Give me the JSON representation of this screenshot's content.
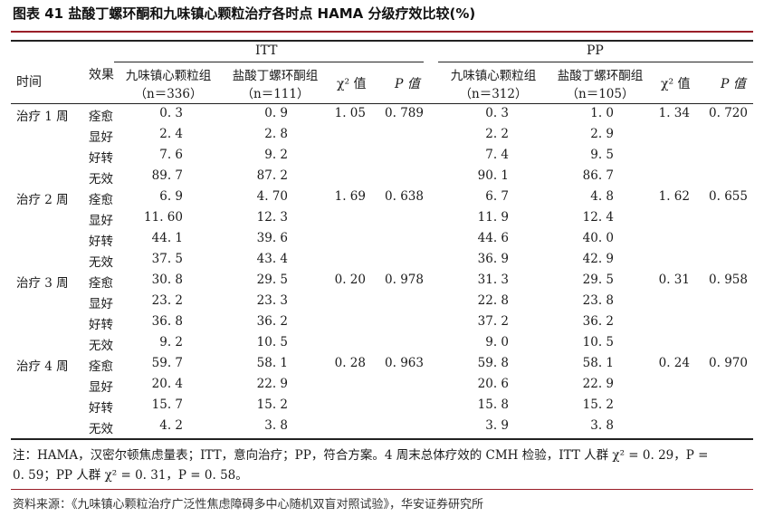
{
  "figure": {
    "title": "图表 41 盐酸丁螺环酮和九味镇心颗粒治疗各时点 HAMA 分级疗效比较(%)"
  },
  "header": {
    "time": "时间",
    "effect": "效果",
    "itt": "ITT",
    "pp": "PP",
    "itt_group1": "九味镇心颗粒组",
    "itt_group1_n": "（n＝336）",
    "itt_group2": "盐酸丁螺环酮组",
    "itt_group2_n": "（n＝111）",
    "pp_group1": "九味镇心颗粒组",
    "pp_group1_n": "（n＝312）",
    "pp_group2": "盐酸丁螺环酮组",
    "pp_group2_n": "（n＝105）",
    "chi": "χ² 值",
    "p": "P 值"
  },
  "rows": [
    {
      "time": "治疗 1 周",
      "effect": "痊愈",
      "itt1": "0. 3",
      "itt2": "0. 9",
      "itt_chi": "1. 05",
      "itt_p": "0. 789",
      "pp1": "0. 3",
      "pp2": "1. 0",
      "pp_chi": "1. 34",
      "pp_p": "0. 720"
    },
    {
      "time": "",
      "effect": "显好",
      "itt1": "2. 4",
      "itt2": "2. 8",
      "itt_chi": "",
      "itt_p": "",
      "pp1": "2. 2",
      "pp2": "2. 9",
      "pp_chi": "",
      "pp_p": ""
    },
    {
      "time": "",
      "effect": "好转",
      "itt1": "7. 6",
      "itt2": "9. 2",
      "itt_chi": "",
      "itt_p": "",
      "pp1": "7. 4",
      "pp2": "9. 5",
      "pp_chi": "",
      "pp_p": ""
    },
    {
      "time": "",
      "effect": "无效",
      "itt1": "89. 7",
      "itt2": "87. 2",
      "itt_chi": "",
      "itt_p": "",
      "pp1": "90. 1",
      "pp2": "86. 7",
      "pp_chi": "",
      "pp_p": ""
    },
    {
      "time": "治疗 2 周",
      "effect": "痊愈",
      "itt1": "6. 9",
      "itt2": "4. 70",
      "itt_chi": "1. 69",
      "itt_p": "0. 638",
      "pp1": "6. 7",
      "pp2": "4. 8",
      "pp_chi": "1. 62",
      "pp_p": "0. 655"
    },
    {
      "time": "",
      "effect": "显好",
      "itt1": "11. 60",
      "itt2": "12. 3",
      "itt_chi": "",
      "itt_p": "",
      "pp1": "11. 9",
      "pp2": "12. 4",
      "pp_chi": "",
      "pp_p": ""
    },
    {
      "time": "",
      "effect": "好转",
      "itt1": "44. 1",
      "itt2": "39. 6",
      "itt_chi": "",
      "itt_p": "",
      "pp1": "44. 6",
      "pp2": "40. 0",
      "pp_chi": "",
      "pp_p": ""
    },
    {
      "time": "",
      "effect": "无效",
      "itt1": "37. 5",
      "itt2": "43. 4",
      "itt_chi": "",
      "itt_p": "",
      "pp1": "36. 9",
      "pp2": "42. 9",
      "pp_chi": "",
      "pp_p": ""
    },
    {
      "time": "治疗 3 周",
      "effect": "痊愈",
      "itt1": "30. 8",
      "itt2": "29. 5",
      "itt_chi": "0. 20",
      "itt_p": "0. 978",
      "pp1": "31. 3",
      "pp2": "29. 5",
      "pp_chi": "0. 31",
      "pp_p": "0. 958"
    },
    {
      "time": "",
      "effect": "显好",
      "itt1": "23. 2",
      "itt2": "23. 3",
      "itt_chi": "",
      "itt_p": "",
      "pp1": "22. 8",
      "pp2": "23. 8",
      "pp_chi": "",
      "pp_p": ""
    },
    {
      "time": "",
      "effect": "好转",
      "itt1": "36. 8",
      "itt2": "36. 2",
      "itt_chi": "",
      "itt_p": "",
      "pp1": "37. 2",
      "pp2": "36. 2",
      "pp_chi": "",
      "pp_p": ""
    },
    {
      "time": "",
      "effect": "无效",
      "itt1": "9. 2",
      "itt2": "10. 5",
      "itt_chi": "",
      "itt_p": "",
      "pp1": "9. 0",
      "pp2": "10. 5",
      "pp_chi": "",
      "pp_p": ""
    },
    {
      "time": "治疗 4 周",
      "effect": "痊愈",
      "itt1": "59. 7",
      "itt2": "58. 1",
      "itt_chi": "0. 28",
      "itt_p": "0. 963",
      "pp1": "59. 8",
      "pp2": "58. 1",
      "pp_chi": "0. 24",
      "pp_p": "0. 970"
    },
    {
      "time": "",
      "effect": "显好",
      "itt1": "20. 4",
      "itt2": "22. 9",
      "itt_chi": "",
      "itt_p": "",
      "pp1": "20. 6",
      "pp2": "22. 9",
      "pp_chi": "",
      "pp_p": ""
    },
    {
      "time": "",
      "effect": "好转",
      "itt1": "15. 7",
      "itt2": "15. 2",
      "itt_chi": "",
      "itt_p": "",
      "pp1": "15. 8",
      "pp2": "15. 2",
      "pp_chi": "",
      "pp_p": ""
    },
    {
      "time": "",
      "effect": "无效",
      "itt1": "4. 2",
      "itt2": "3. 8",
      "itt_chi": "",
      "itt_p": "",
      "pp1": "3. 9",
      "pp2": "3. 8",
      "pp_chi": "",
      "pp_p": ""
    }
  ],
  "note": {
    "line1": "注：HAMA，汉密尔顿焦虑量表；ITT，意向治疗；PP，符合方案。4 周末总体疗效的 CMH 检验，ITT 人群 χ² = 0. 29，P =",
    "line2": "0. 59；PP 人群 χ² = 0. 31，P = 0. 58。"
  },
  "source": "资料来源：《九味镇心颗粒治疗广泛性焦虑障碍多中心随机双盲对照试验》，华安证券研究所",
  "colors": {
    "accent_rule": "#9a1f28",
    "text": "#1a1a1a"
  }
}
